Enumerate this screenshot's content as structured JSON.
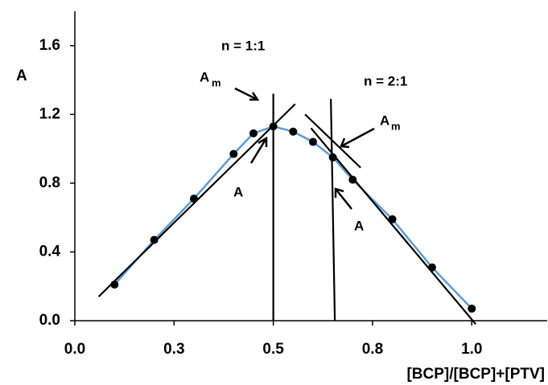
{
  "chart_data": {
    "type": "scatter",
    "ylabel": "A",
    "xlabel": "[BCP]/[BCP]+[PTV]",
    "x": [
      0.1,
      0.2,
      0.3,
      0.4,
      0.45,
      0.5,
      0.55,
      0.6,
      0.65,
      0.7,
      0.8,
      0.9,
      1.0
    ],
    "series": [
      {
        "color": "#000000",
        "curve_color": "#5b9bd5",
        "values": [
          0.21,
          0.47,
          0.71,
          0.97,
          1.09,
          1.13,
          1.1,
          1.04,
          0.95,
          0.82,
          0.59,
          0.31,
          0.07
        ]
      }
    ],
    "lines": [
      {
        "x": [
          0.06,
          0.555
        ],
        "y": [
          0.14,
          1.26
        ]
      },
      {
        "x": [
          0.595,
          1.01
        ],
        "y": [
          1.12,
          -0.02
        ]
      },
      {
        "x": [
          0.5,
          0.5
        ],
        "y": [
          0.0,
          1.32
        ]
      },
      {
        "x": [
          0.645,
          0.655
        ],
        "y": [
          1.29,
          0.0
        ]
      },
      {
        "x": [
          0.58,
          0.72
        ],
        "y": [
          1.2,
          0.89
        ]
      }
    ],
    "xlim": [
      0,
      1.19
    ],
    "ylim": [
      0,
      1.8
    ],
    "xticks": [
      {
        "value": 0,
        "label": "0.0"
      },
      {
        "value": 0.25,
        "label": "0.3"
      },
      {
        "value": 0.5,
        "label": "0.5"
      },
      {
        "value": 0.75,
        "label": "0.8"
      },
      {
        "value": 1,
        "label": "1.0"
      }
    ],
    "yticks": [
      {
        "value": 0,
        "label": "0.0"
      },
      0.4,
      0.8,
      1.2,
      1.6
    ],
    "annotations": [
      {
        "text": "n = 1:1"
      },
      {
        "text": "n = 2:1"
      },
      {
        "text": "A",
        "sub": "m"
      },
      {
        "text": "A",
        "sub": "m"
      },
      {
        "text": "A"
      },
      {
        "text": "A"
      }
    ]
  }
}
